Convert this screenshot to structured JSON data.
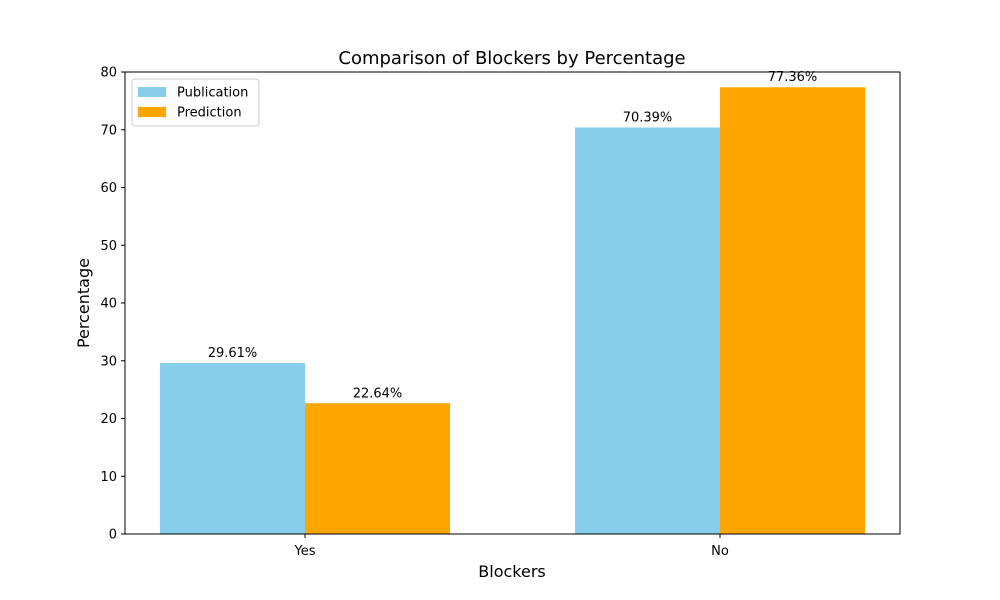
{
  "chart_data": {
    "type": "bar",
    "title": "Comparison of Blockers by Percentage",
    "xlabel": "Blockers",
    "ylabel": "Percentage",
    "categories": [
      "Yes",
      "No"
    ],
    "series": [
      {
        "name": "Publication",
        "values": [
          29.61,
          70.39
        ],
        "labels": [
          "29.61%",
          "70.39%"
        ],
        "color": "#87ceeb"
      },
      {
        "name": "Prediction",
        "values": [
          22.64,
          77.36
        ],
        "labels": [
          "22.64%",
          "77.36%"
        ],
        "color": "#ffa500"
      }
    ],
    "ylim": [
      0,
      80
    ],
    "yticks": [
      "0",
      "10",
      "20",
      "30",
      "40",
      "50",
      "60",
      "70",
      "80"
    ],
    "grid": false,
    "legend_position": "top-left"
  }
}
